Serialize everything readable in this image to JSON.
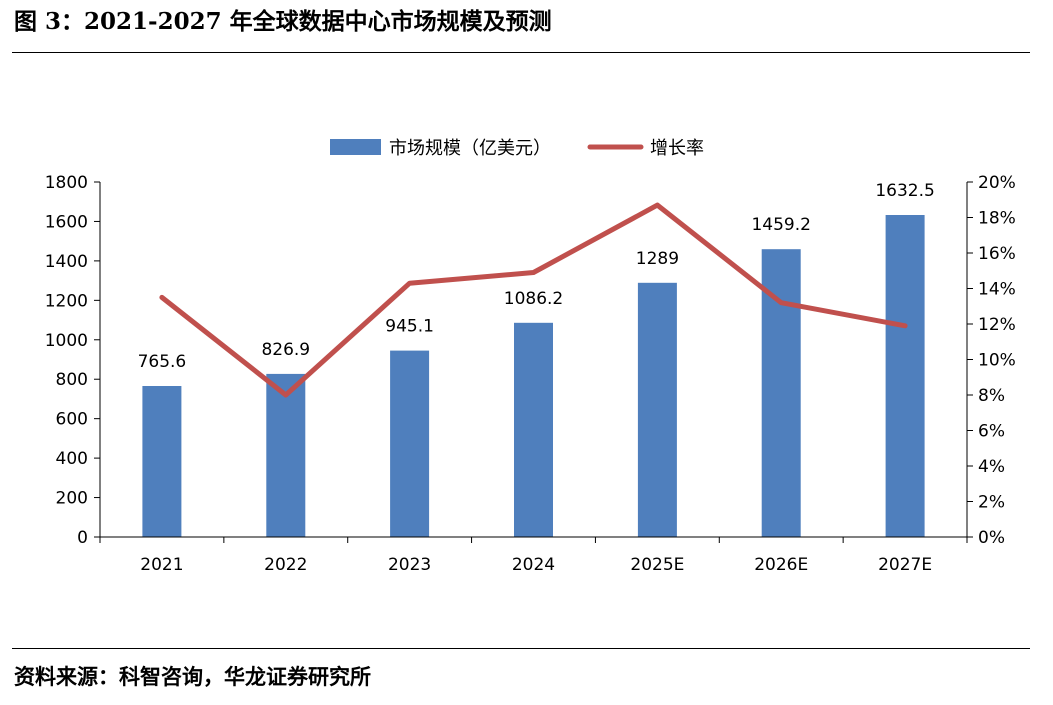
{
  "figure": {
    "title": "图 3：2021-2027 年全球数据中心市场规模及预测",
    "source": "资料来源：科智咨询，华龙证券研究所"
  },
  "chart_data": {
    "type": "bar+line",
    "categories": [
      "2021",
      "2022",
      "2023",
      "2024",
      "2025E",
      "2026E",
      "2027E"
    ],
    "series": [
      {
        "name": "市场规模（亿美元）",
        "kind": "bar",
        "axis": "left",
        "color": "#4F7FBD",
        "values": [
          765.6,
          826.9,
          945.1,
          1086.2,
          1289,
          1459.2,
          1632.5
        ],
        "labels": [
          "765.6",
          "826.9",
          "945.1",
          "1086.2",
          "1289",
          "1459.2",
          "1632.5"
        ]
      },
      {
        "name": "增长率",
        "kind": "line",
        "axis": "right",
        "color": "#C0504D",
        "values": [
          13.5,
          8.0,
          14.3,
          14.9,
          18.7,
          13.2,
          11.9
        ]
      }
    ],
    "left_axis": {
      "min": 0,
      "max": 1800,
      "ticks": [
        "0",
        "200",
        "400",
        "600",
        "800",
        "1000",
        "1200",
        "1400",
        "1600",
        "1800"
      ]
    },
    "right_axis": {
      "min": 0,
      "max": 20,
      "ticks": [
        "0%",
        "2%",
        "4%",
        "6%",
        "8%",
        "10%",
        "12%",
        "14%",
        "16%",
        "18%",
        "20%"
      ]
    },
    "legend_position": "top-center",
    "grid": false
  }
}
